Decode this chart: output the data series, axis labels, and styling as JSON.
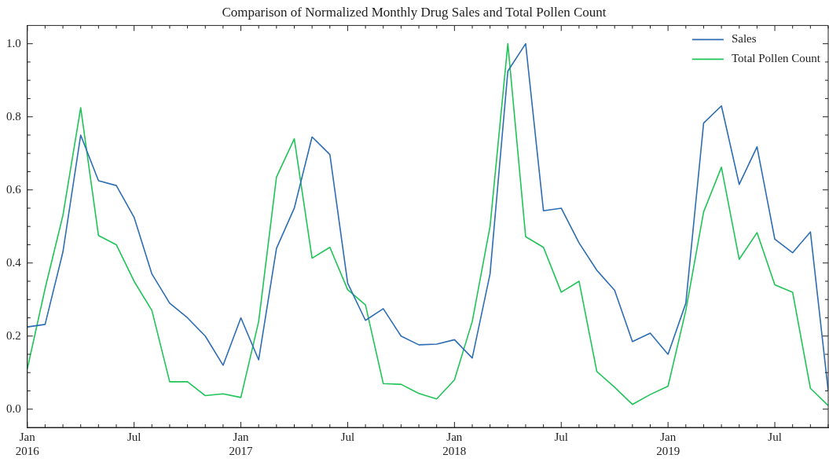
{
  "chart_data": {
    "type": "line",
    "title": "Comparison of Normalized Monthly Drug Sales and Total Pollen Count",
    "x": [
      "2016-01",
      "2016-02",
      "2016-03",
      "2016-04",
      "2016-05",
      "2016-06",
      "2016-07",
      "2016-08",
      "2016-09",
      "2016-10",
      "2016-11",
      "2016-12",
      "2017-01",
      "2017-02",
      "2017-03",
      "2017-04",
      "2017-05",
      "2017-06",
      "2017-07",
      "2017-08",
      "2017-09",
      "2017-10",
      "2017-11",
      "2017-12",
      "2018-01",
      "2018-02",
      "2018-03",
      "2018-04",
      "2018-05",
      "2018-06",
      "2018-07",
      "2018-08",
      "2018-09",
      "2018-10",
      "2018-11",
      "2018-12",
      "2019-01",
      "2019-02",
      "2019-03",
      "2019-04",
      "2019-05",
      "2019-06",
      "2019-07",
      "2019-08",
      "2019-09",
      "2019-10"
    ],
    "series": [
      {
        "name": "Sales",
        "color": "#2c6db4",
        "values": [
          0.225,
          0.232,
          0.43,
          0.75,
          0.625,
          0.612,
          0.525,
          0.37,
          0.29,
          0.25,
          0.2,
          0.12,
          0.25,
          0.135,
          0.44,
          0.55,
          0.745,
          0.697,
          0.345,
          0.243,
          0.275,
          0.2,
          0.176,
          0.178,
          0.19,
          0.14,
          0.37,
          0.925,
          1.0,
          0.543,
          0.55,
          0.455,
          0.38,
          0.325,
          0.185,
          0.208,
          0.15,
          0.29,
          0.783,
          0.83,
          0.615,
          0.718,
          0.465,
          0.428,
          0.485,
          0.05
        ]
      },
      {
        "name": "Total Pollen Count",
        "color": "#1fc457",
        "values": [
          0.11,
          0.33,
          0.53,
          0.825,
          0.475,
          0.45,
          0.35,
          0.27,
          0.075,
          0.075,
          0.037,
          0.042,
          0.032,
          0.24,
          0.635,
          0.74,
          0.413,
          0.443,
          0.327,
          0.285,
          0.07,
          0.068,
          0.043,
          0.028,
          0.08,
          0.24,
          0.5,
          1.0,
          0.472,
          0.443,
          0.32,
          0.35,
          0.103,
          0.06,
          0.013,
          0.04,
          0.063,
          0.27,
          0.54,
          0.662,
          0.41,
          0.483,
          0.34,
          0.32,
          0.057,
          0.01
        ]
      }
    ],
    "xlim": [
      "2016-01",
      "2019-10"
    ],
    "xticks": [
      {
        "value": "2016-01",
        "label": "Jan 2016"
      },
      {
        "value": "2016-07",
        "label": "Jul"
      },
      {
        "value": "2017-01",
        "label": "Jan 2017"
      },
      {
        "value": "2017-07",
        "label": "Jul"
      },
      {
        "value": "2018-01",
        "label": "Jan 2018"
      },
      {
        "value": "2018-07",
        "label": "Jul"
      },
      {
        "value": "2019-01",
        "label": "Jan 2019"
      },
      {
        "value": "2019-07",
        "label": "Jul"
      }
    ],
    "ylim": [
      -0.05,
      1.05
    ],
    "yticks": [
      {
        "value": 0,
        "label": "0.0"
      },
      0.2,
      0.4,
      0.6,
      0.8,
      {
        "value": 1,
        "label": "1.0"
      }
    ],
    "grid": false,
    "legend": "top right",
    "marker": "none",
    "line_style": "solid"
  }
}
